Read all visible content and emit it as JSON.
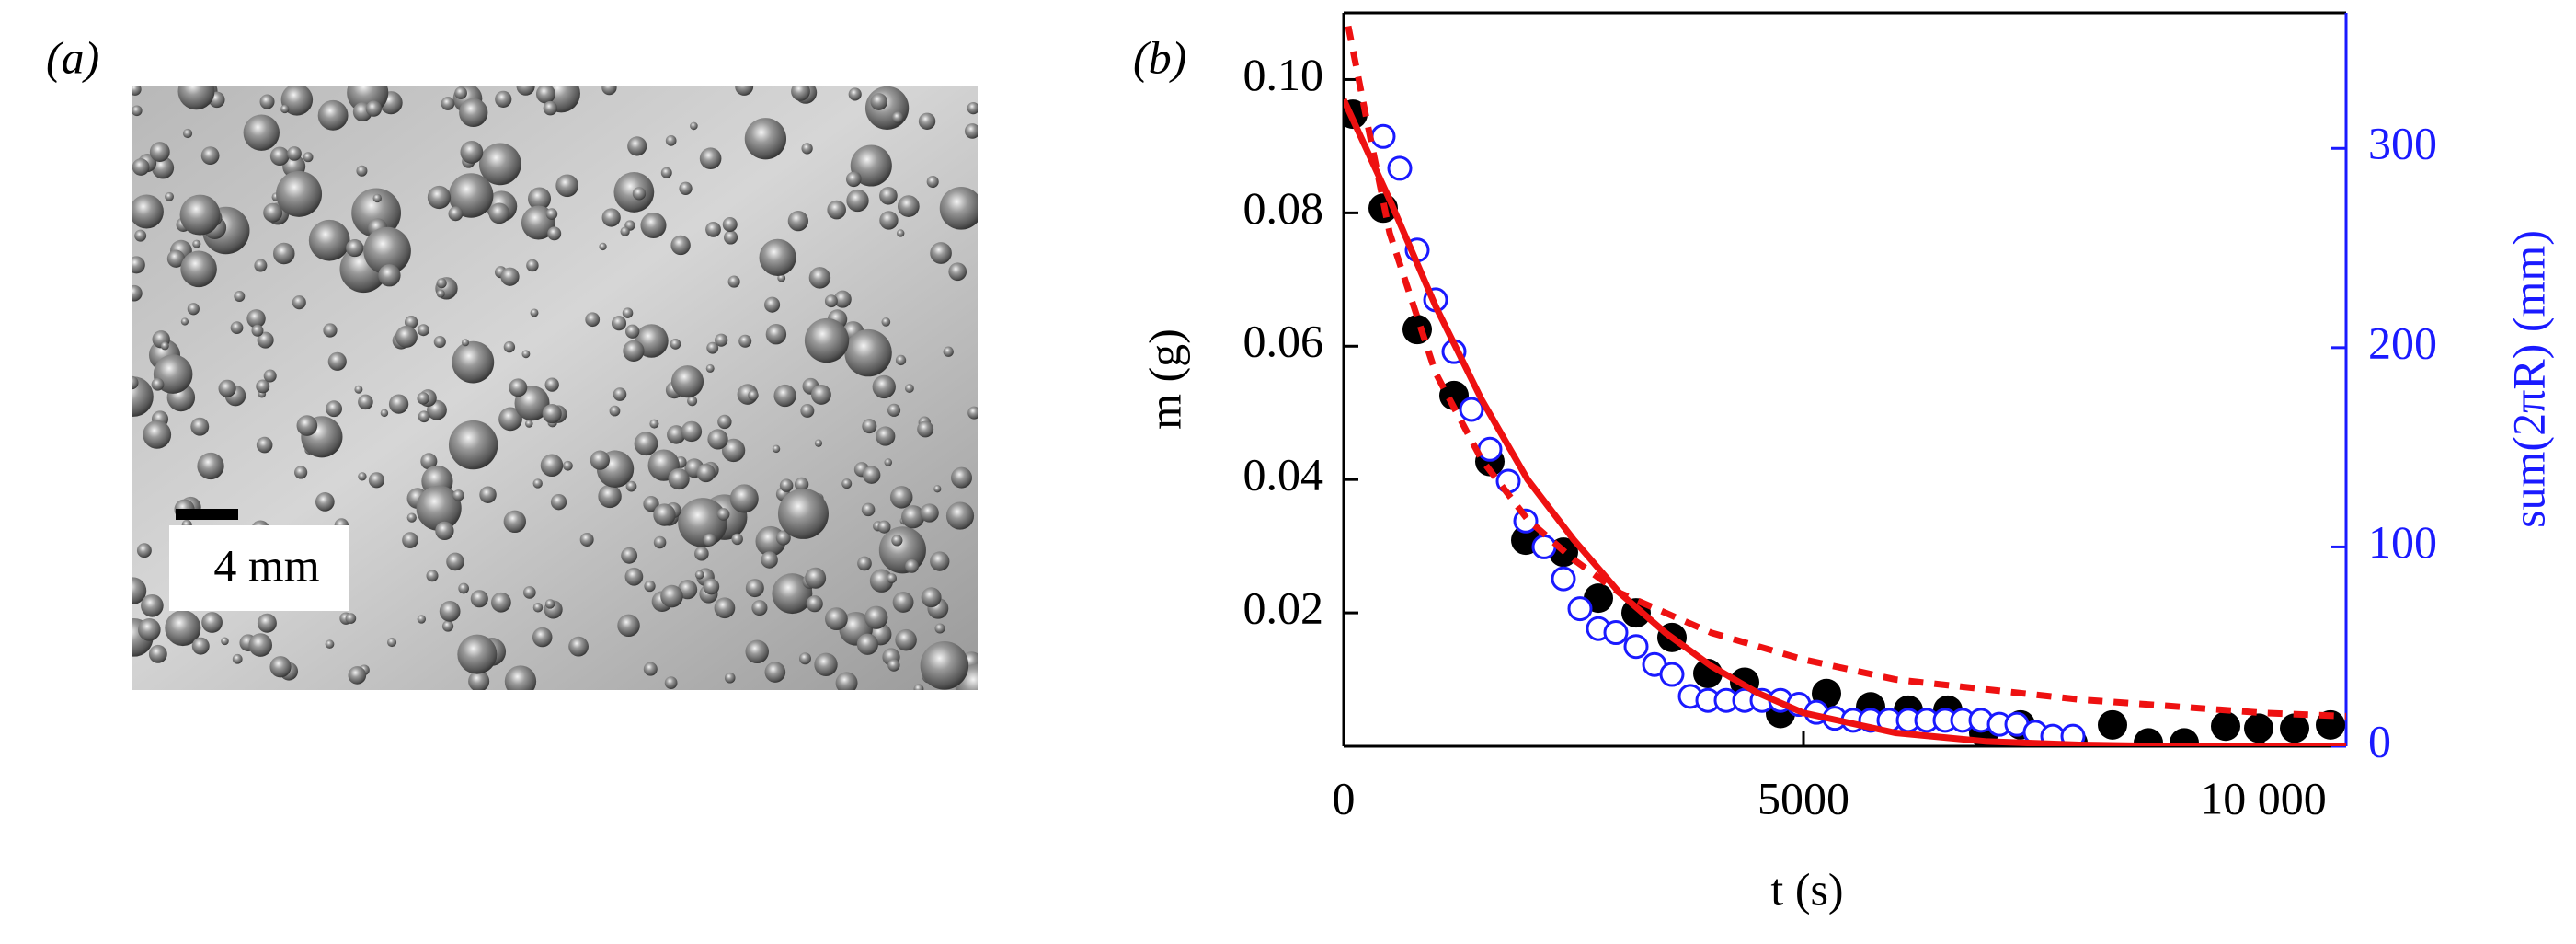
{
  "panel_a": {
    "label": "(a)",
    "scale_bar": "4 mm"
  },
  "chart_data": {
    "type": "scatter",
    "panel_label": "(b)",
    "x_label": "t (s)",
    "y_label": "m (g)",
    "y2_label": "sum(2πR) (mm)",
    "xlim": [
      0,
      10900
    ],
    "xticks": [
      0,
      5000,
      {
        "value": 10000,
        "label": "10 000"
      }
    ],
    "ylim": [
      0,
      0.11
    ],
    "yticks": [
      0.02,
      0.04,
      0.06,
      {
        "value": 0.1,
        "label": "0.10"
      },
      0.08
    ],
    "y2lim": [
      0,
      368
    ],
    "y2ticks": [
      0,
      100,
      200,
      300
    ],
    "y2_color": "#1a1aff",
    "series": [
      {
        "color": "#000000",
        "marker": "filled",
        "x": [
          100,
          430,
          800,
          1200,
          1590,
          1980,
          2390,
          2770,
          3180,
          3570,
          3960,
          4360,
          4750,
          5250,
          5730,
          6140,
          6570,
          6960,
          7360,
          7930,
          8360,
          8750,
          9140,
          9590,
          9950,
          10340,
          10730
        ],
        "values": [
          0.0948,
          0.0807,
          0.0625,
          0.0526,
          0.0427,
          0.0309,
          0.0291,
          0.0222,
          0.02,
          0.0163,
          0.0109,
          0.0096,
          0.0049,
          0.0079,
          0.0059,
          0.0054,
          0.0054,
          0.002,
          0.0032,
          0.0005,
          0.0032,
          0.0005,
          0.0005,
          0.003,
          0.0027,
          0.0027,
          0.0032
        ]
      },
      {
        "color": "#1a1aff",
        "marker": "open",
        "axis": "y2",
        "x": [
          430,
          610,
          800,
          1000,
          1200,
          1390,
          1590,
          1790,
          1980,
          2180,
          2390,
          2570,
          2770,
          2960,
          3180,
          3380,
          3570,
          3770,
          3960,
          4160,
          4360,
          4550,
          4750,
          4950,
          5140,
          5340,
          5540,
          5730,
          5930,
          6140,
          6340,
          6540,
          6730,
          6930,
          7130,
          7320,
          7520,
          7710,
          7930
        ],
        "values": [
          306,
          290,
          249,
          224,
          198,
          169,
          149,
          133,
          113,
          100,
          84,
          69,
          59,
          57,
          50,
          41,
          36,
          25,
          23,
          23,
          23,
          23,
          23,
          21,
          17,
          14,
          13,
          13,
          13,
          13,
          13,
          13,
          13,
          13,
          11,
          11,
          7,
          5,
          5
        ]
      },
      {
        "color": "#ee1111",
        "marker": "none",
        "style": "solid",
        "x": [
          0,
          500,
          1000,
          1500,
          2000,
          2500,
          3000,
          3500,
          4000,
          4500,
          5000,
          6000,
          7000,
          8000,
          9000,
          10000,
          10900
        ],
        "values": [
          0.097,
          0.082,
          0.066,
          0.052,
          0.04,
          0.031,
          0.023,
          0.017,
          0.012,
          0.008,
          0.005,
          0.002,
          0.0007,
          0.0002,
          0,
          0,
          0
        ]
      },
      {
        "color": "#ee1111",
        "marker": "none",
        "style": "dashed",
        "x": [
          50,
          250,
          500,
          1000,
          1500,
          2000,
          2500,
          3000,
          3500,
          4000,
          5000,
          6000,
          7000,
          8000,
          9000,
          10000,
          10900
        ],
        "values": [
          0.108,
          0.094,
          0.077,
          0.056,
          0.043,
          0.034,
          0.028,
          0.023,
          0.02,
          0.017,
          0.013,
          0.01,
          0.0085,
          0.007,
          0.006,
          0.005,
          0.0045
        ]
      }
    ]
  }
}
